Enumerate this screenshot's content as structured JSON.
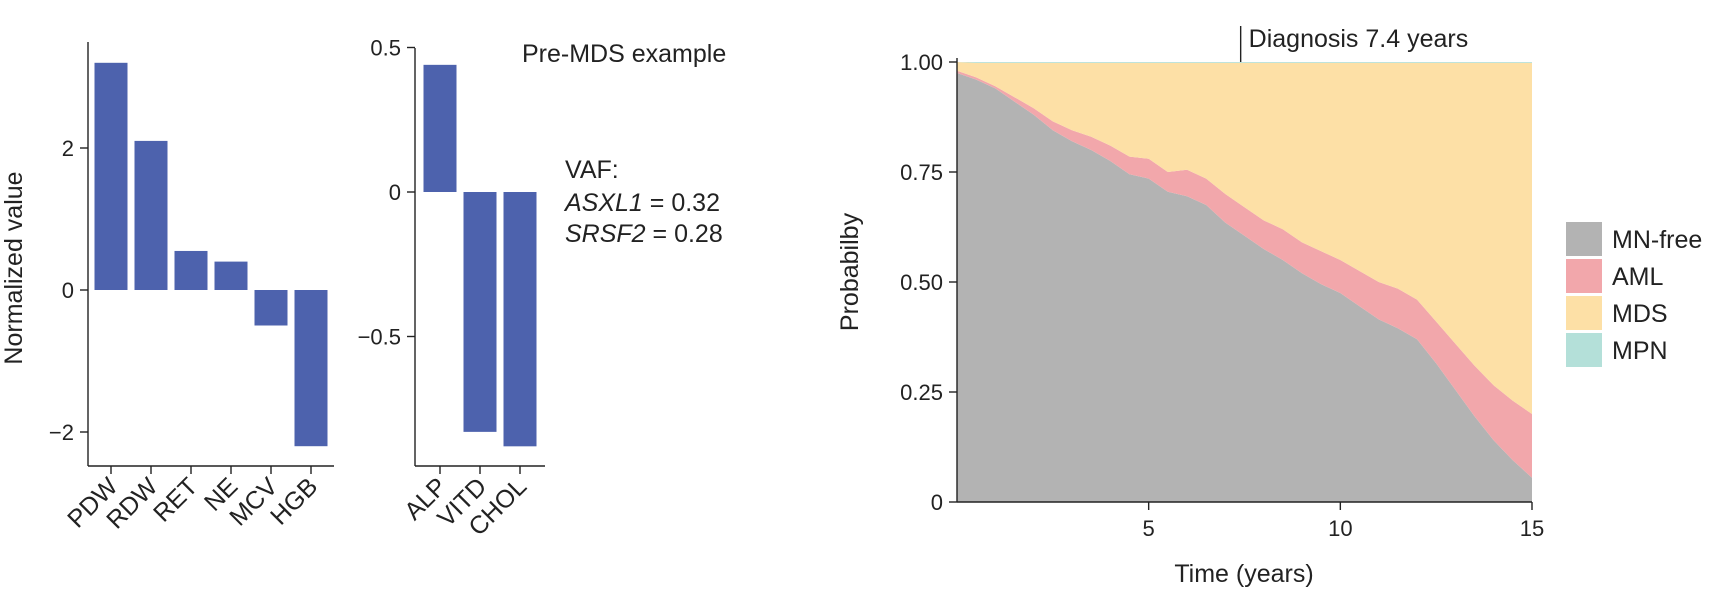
{
  "chart_data": [
    {
      "type": "bar",
      "ylabel": "Normalized value",
      "categories": [
        "PDW",
        "RDW",
        "RET",
        "NE",
        "MCV",
        "HGB"
      ],
      "values": [
        3.2,
        2.1,
        0.55,
        0.4,
        -0.5,
        -2.2
      ],
      "yticks": [
        -2,
        0,
        2
      ],
      "ytick_labels": [
        "−2",
        "0",
        "2"
      ],
      "ylim": [
        -2.55,
        3.5
      ],
      "bar_color": "#4d62ad"
    },
    {
      "type": "bar",
      "title": "Pre-MDS example",
      "categories": [
        "ALP",
        "VITD",
        "CHOL"
      ],
      "values": [
        0.44,
        -0.83,
        -0.88
      ],
      "yticks": [
        -0.5,
        0,
        0.5
      ],
      "ytick_labels": [
        "−0.5",
        "0",
        "0.5"
      ],
      "ylim": [
        -0.93,
        0.5
      ],
      "bar_color": "#4d62ad",
      "annotation": {
        "heading": "VAF:",
        "lines": [
          {
            "gene": "ASXL1",
            "value": " = 0.32"
          },
          {
            "gene": "SRSF2",
            "value": " = 0.28"
          }
        ]
      }
    },
    {
      "type": "area",
      "stacked": true,
      "xlabel": "Time (years)",
      "ylabel": "Probabilby",
      "xlim": [
        0,
        15
      ],
      "ylim": [
        0,
        1.0
      ],
      "xticks": [
        5,
        10,
        15
      ],
      "yticks": [
        0,
        0.25,
        0.5,
        0.75,
        1.0
      ],
      "ytick_labels": [
        "0",
        "0.25",
        "0.50",
        "0.75",
        "1.00"
      ],
      "annotation": {
        "text": "Diagnosis 7.4 years",
        "x": 7.4
      },
      "x": [
        0,
        0.5,
        1,
        1.5,
        2,
        2.5,
        3,
        3.5,
        4,
        4.5,
        5,
        5.5,
        6,
        6.5,
        7,
        7.5,
        8,
        8.5,
        9,
        9.5,
        10,
        10.5,
        11,
        11.5,
        12,
        12.5,
        13,
        13.5,
        14,
        14.5,
        15
      ],
      "legend": [
        "MN-free",
        "AML",
        "MDS",
        "MPN"
      ],
      "series": [
        {
          "name": "MN-free",
          "color": "#b3b3b3",
          "values": [
            0.975,
            0.96,
            0.94,
            0.91,
            0.88,
            0.845,
            0.82,
            0.8,
            0.775,
            0.745,
            0.735,
            0.705,
            0.695,
            0.675,
            0.635,
            0.605,
            0.575,
            0.55,
            0.52,
            0.495,
            0.475,
            0.445,
            0.415,
            0.395,
            0.37,
            0.315,
            0.255,
            0.195,
            0.14,
            0.095,
            0.055
          ]
        },
        {
          "name": "AML",
          "color": "#f2a7ab",
          "values": [
            0.005,
            0.005,
            0.005,
            0.01,
            0.015,
            0.02,
            0.025,
            0.03,
            0.035,
            0.04,
            0.045,
            0.045,
            0.06,
            0.06,
            0.065,
            0.065,
            0.065,
            0.07,
            0.07,
            0.075,
            0.075,
            0.08,
            0.085,
            0.09,
            0.09,
            0.095,
            0.105,
            0.115,
            0.125,
            0.135,
            0.145
          ]
        },
        {
          "name": "MDS",
          "color": "#fde0a6",
          "values": [
            0.02,
            0.033,
            0.053,
            0.078,
            0.103,
            0.133,
            0.153,
            0.168,
            0.188,
            0.213,
            0.218,
            0.248,
            0.243,
            0.263,
            0.298,
            0.328,
            0.358,
            0.378,
            0.408,
            0.428,
            0.448,
            0.473,
            0.498,
            0.513,
            0.538,
            0.588,
            0.638,
            0.688,
            0.733,
            0.768,
            0.798
          ]
        },
        {
          "name": "MPN",
          "color": "#b4e0d9",
          "values": [
            0.0,
            0.002,
            0.002,
            0.002,
            0.002,
            0.002,
            0.002,
            0.002,
            0.002,
            0.002,
            0.002,
            0.002,
            0.002,
            0.002,
            0.002,
            0.002,
            0.002,
            0.002,
            0.002,
            0.002,
            0.002,
            0.002,
            0.002,
            0.002,
            0.002,
            0.002,
            0.002,
            0.002,
            0.002,
            0.002,
            0.002
          ]
        }
      ]
    }
  ]
}
